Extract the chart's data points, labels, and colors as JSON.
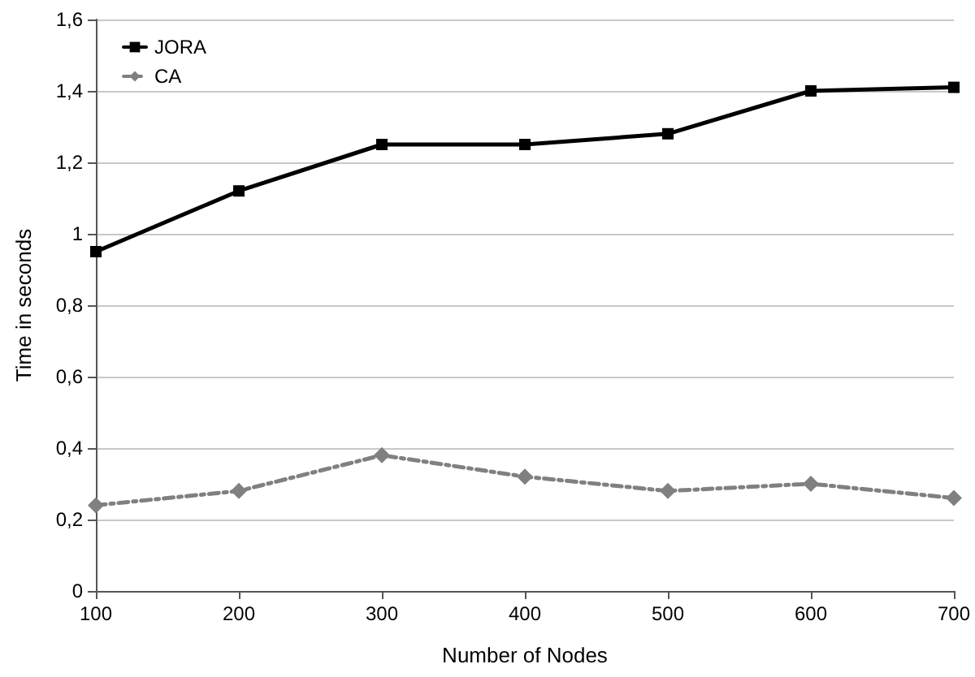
{
  "chart_data": {
    "type": "line",
    "xlabel": "Number of Nodes",
    "ylabel": "Time in seconds",
    "x": [
      100,
      200,
      300,
      400,
      500,
      600,
      700
    ],
    "series": [
      {
        "name": "JORA",
        "color": "#000000",
        "marker": "square",
        "line_style": "solid",
        "values": [
          0.95,
          1.12,
          1.25,
          1.25,
          1.28,
          1.4,
          1.41
        ]
      },
      {
        "name": "CA",
        "color": "#808080",
        "marker": "diamond",
        "line_style": "dashed",
        "values": [
          0.24,
          0.28,
          0.38,
          0.32,
          0.28,
          0.3,
          0.26
        ]
      }
    ],
    "xlim": [
      100,
      700
    ],
    "xticks": [
      100,
      200,
      300,
      400,
      500,
      600,
      700
    ],
    "ylim": [
      0,
      1.6
    ],
    "yticks": [
      0,
      {
        "value": 0.2,
        "label": "0,2"
      },
      {
        "value": 0.4,
        "label": "0,4"
      },
      {
        "value": 0.6,
        "label": "0,6"
      },
      {
        "value": 0.8,
        "label": "0,8"
      },
      1,
      {
        "value": 1.2,
        "label": "1,2"
      },
      {
        "value": 1.4,
        "label": "1,4"
      },
      {
        "value": 1.6,
        "label": "1,6"
      }
    ],
    "grid": "y",
    "legend": "top left"
  }
}
